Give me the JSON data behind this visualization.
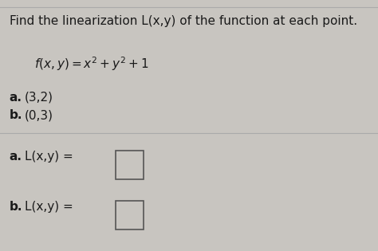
{
  "bg_color": "#c8c5c0",
  "title_text": "Find the linearization L(x,y) of the function at each point.",
  "point_a_label": "a.",
  "point_a_val": " (3,2)",
  "point_b_label": "b.",
  "point_b_val": " (0,3)",
  "answer_a_label": "a.",
  "answer_a_eq": " L(x,y) =",
  "answer_b_label": "b.",
  "answer_b_eq": " L(x,y) =",
  "title_fontsize": 11,
  "body_fontsize": 11,
  "label_fontsize": 11
}
